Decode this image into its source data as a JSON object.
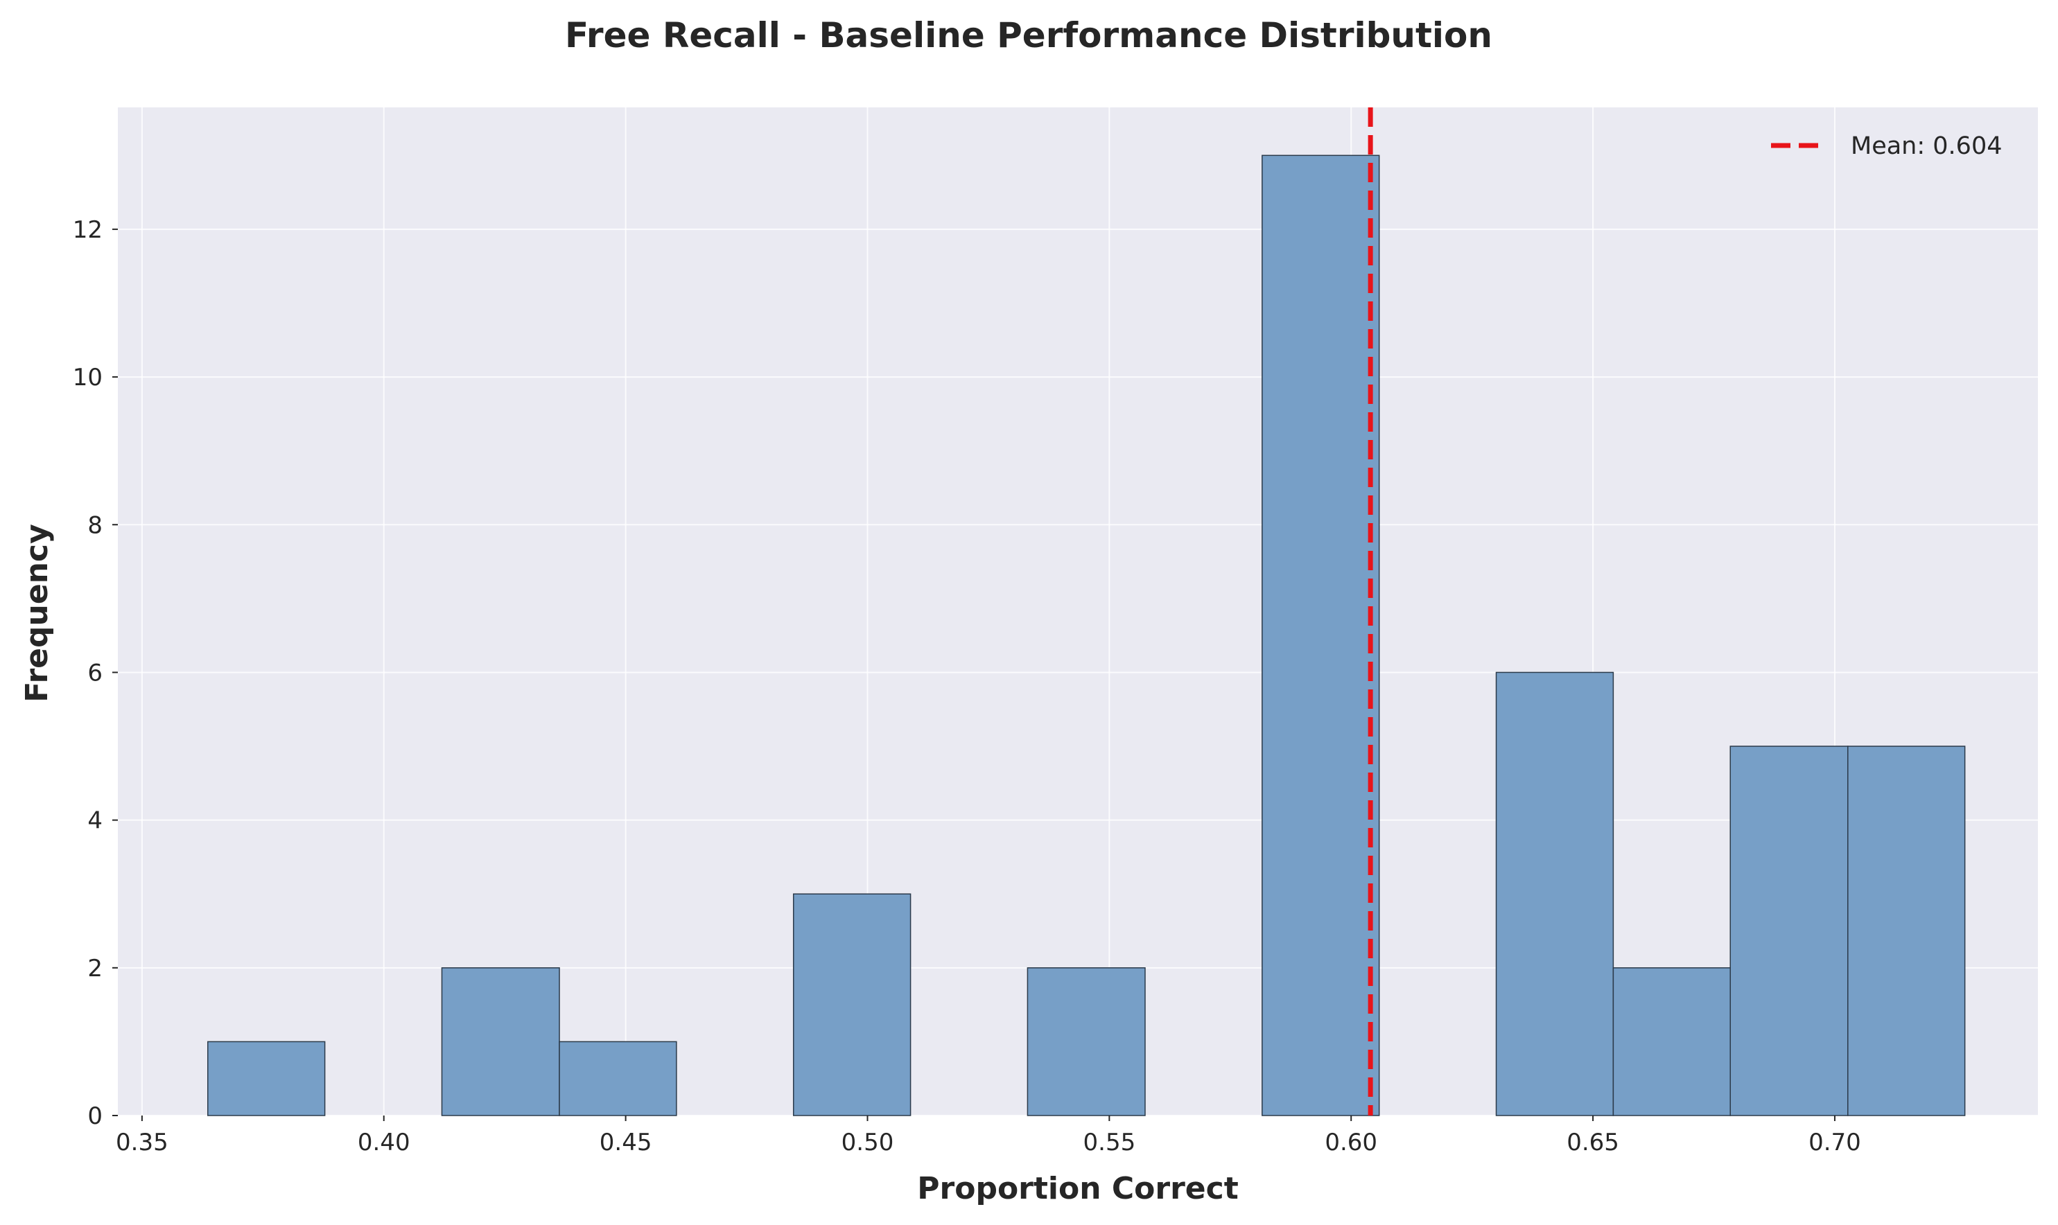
{
  "chart_data": {
    "type": "bar",
    "title": "Free Recall - Baseline Performance Distribution",
    "xlabel": "Proportion Correct",
    "ylabel": "Frequency",
    "xlim": [
      0.345,
      0.742
    ],
    "ylim": [
      0,
      13.65
    ],
    "x_ticks": [
      0.35,
      0.4,
      0.45,
      0.5,
      0.55,
      0.6,
      0.65,
      0.7
    ],
    "x_tick_labels": [
      "0.35",
      "0.40",
      "0.45",
      "0.50",
      "0.55",
      "0.60",
      "0.65",
      "0.70"
    ],
    "y_ticks": [
      0,
      2,
      4,
      6,
      8,
      10,
      12
    ],
    "y_tick_labels": [
      "0",
      "2",
      "4",
      "6",
      "8",
      "10",
      "12"
    ],
    "bin_edges": [
      0.3636,
      0.3878,
      0.412,
      0.4363,
      0.4605,
      0.4847,
      0.5089,
      0.5331,
      0.5574,
      0.5816,
      0.6058,
      0.63,
      0.6542,
      0.6784,
      0.7027,
      0.7269
    ],
    "counts": [
      1,
      0,
      2,
      1,
      0,
      3,
      0,
      2,
      0,
      13,
      0,
      6,
      2,
      5,
      5
    ],
    "mean_line": {
      "value": 0.604,
      "label": "Mean: 0.604",
      "style": "dashed"
    },
    "grid": true,
    "legend_position": "upper-right",
    "colors": {
      "bar_fill": "#779fc7",
      "bar_edge": "#2b3a4a",
      "mean_line": "#e8141a",
      "plot_background": "#eaeaf2",
      "grid": "#ffffff",
      "text": "#262626"
    }
  }
}
